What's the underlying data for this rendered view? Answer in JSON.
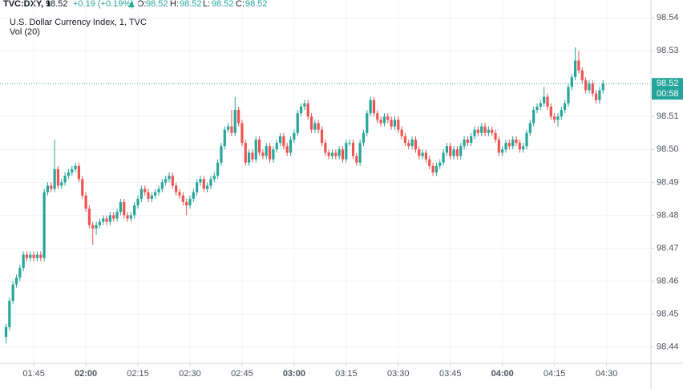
{
  "chart_data": {
    "type": "candlestick",
    "header": {
      "symbol": "TVC:DXY, 1",
      "last": "98.52",
      "change": "+0.19 (+0.19%)",
      "open_label": "O:",
      "open": "98.52",
      "high_label": "H:",
      "high": "98.52",
      "low_label": "L:",
      "low": "98.52",
      "close_label": "C:",
      "close": "98.52"
    },
    "title": "U.S. Dollar Currency Index, 1, TVC",
    "subtitle": "Vol (20)",
    "up_color": "#26a69a",
    "down_color": "#ef5350",
    "ylim": [
      98.435,
      98.542
    ],
    "yticks": [
      98.44,
      98.45,
      98.46,
      98.47,
      98.48,
      98.49,
      {
        "value": 98.5,
        "label": "98.50"
      },
      98.51,
      98.53,
      98.54
    ],
    "xticks": [
      "01:45",
      "02:00",
      "02:15",
      "02:30",
      "02:45",
      "03:00",
      "03:15",
      "03:30",
      "03:45",
      "04:00",
      "04:15",
      "04:30"
    ],
    "grid": true,
    "last_price": {
      "value": 98.52,
      "label": "98.52",
      "countdown": "00:58",
      "color": "#26a69a"
    },
    "x": [
      "01:37",
      "01:38",
      "01:39",
      "01:40",
      "01:41",
      "01:42",
      "01:43",
      "01:44",
      "01:45",
      "01:46",
      "01:47",
      "01:48",
      "01:49",
      "01:50",
      "01:51",
      "01:52",
      "01:53",
      "01:54",
      "01:55",
      "01:56",
      "01:57",
      "01:58",
      "01:59",
      "02:00",
      "02:01",
      "02:02",
      "02:03",
      "02:04",
      "02:05",
      "02:06",
      "02:07",
      "02:08",
      "02:09",
      "02:10",
      "02:11",
      "02:12",
      "02:13",
      "02:14",
      "02:15",
      "02:16",
      "02:17",
      "02:18",
      "02:19",
      "02:20",
      "02:21",
      "02:22",
      "02:23",
      "02:24",
      "02:25",
      "02:26",
      "02:27",
      "02:28",
      "02:29",
      "02:30",
      "02:31",
      "02:32",
      "02:33",
      "02:34",
      "02:35",
      "02:36",
      "02:37",
      "02:38",
      "02:39",
      "02:40",
      "02:41",
      "02:42",
      "02:43",
      "02:44",
      "02:45",
      "02:46",
      "02:47",
      "02:48",
      "02:49",
      "02:50",
      "02:51",
      "02:52",
      "02:53",
      "02:54",
      "02:55",
      "02:56",
      "02:57",
      "02:58",
      "02:59",
      "03:00",
      "03:01",
      "03:02",
      "03:03",
      "03:04",
      "03:05",
      "03:06",
      "03:07",
      "03:08",
      "03:09",
      "03:10",
      "03:11",
      "03:12",
      "03:13",
      "03:14",
      "03:15",
      "03:16",
      "03:17",
      "03:18",
      "03:19",
      "03:20",
      "03:21",
      "03:22",
      "03:23",
      "03:24",
      "03:25",
      "03:26",
      "03:27",
      "03:28",
      "03:29",
      "03:30",
      "03:31",
      "03:32",
      "03:33",
      "03:34",
      "03:35",
      "03:36",
      "03:37",
      "03:38",
      "03:39",
      "03:40",
      "03:41",
      "03:42",
      "03:43",
      "03:44",
      "03:45",
      "03:46",
      "03:47",
      "03:48",
      "03:49",
      "03:50",
      "03:51",
      "03:52",
      "03:53",
      "03:54",
      "03:55",
      "03:56",
      "03:57",
      "03:58",
      "03:59",
      "04:00",
      "04:01",
      "04:02",
      "04:03",
      "04:04",
      "04:05",
      "04:06",
      "04:07",
      "04:08",
      "04:09",
      "04:10",
      "04:11",
      "04:12",
      "04:13",
      "04:14",
      "04:15",
      "04:16",
      "04:17",
      "04:18",
      "04:19",
      "04:20",
      "04:21",
      "04:22",
      "04:23",
      "04:24",
      "04:25",
      "04:26",
      "04:27",
      "04:28",
      "04:29"
    ],
    "ohlc": [
      [
        98.443,
        98.447,
        98.441,
        98.446
      ],
      [
        98.446,
        98.455,
        98.445,
        98.454
      ],
      [
        98.454,
        98.46,
        98.453,
        98.459
      ],
      [
        98.459,
        98.462,
        98.458,
        98.461
      ],
      [
        98.461,
        98.465,
        98.46,
        98.464
      ],
      [
        98.464,
        98.469,
        98.463,
        98.468
      ],
      [
        98.468,
        98.469,
        98.466,
        98.467
      ],
      [
        98.467,
        98.469,
        98.466,
        98.468
      ],
      [
        98.468,
        98.469,
        98.466,
        98.467
      ],
      [
        98.467,
        98.469,
        98.466,
        98.468
      ],
      [
        98.468,
        98.469,
        98.466,
        98.467
      ],
      [
        98.467,
        98.488,
        98.466,
        98.487
      ],
      [
        98.487,
        98.49,
        98.486,
        98.489
      ],
      [
        98.489,
        98.49,
        98.487,
        98.488
      ],
      [
        98.488,
        98.503,
        98.487,
        98.494
      ],
      [
        98.494,
        98.495,
        98.488,
        98.489
      ],
      [
        98.489,
        98.491,
        98.488,
        98.49
      ],
      [
        98.49,
        98.493,
        98.489,
        98.492
      ],
      [
        98.492,
        98.494,
        98.491,
        98.493
      ],
      [
        98.493,
        98.495,
        98.492,
        98.494
      ],
      [
        98.494,
        98.496,
        98.493,
        98.495
      ],
      [
        98.495,
        98.496,
        98.49,
        98.491
      ],
      [
        98.491,
        98.492,
        98.485,
        98.486
      ],
      [
        98.486,
        98.487,
        98.481,
        98.482
      ],
      [
        98.482,
        98.483,
        98.476,
        98.477
      ],
      [
        98.477,
        98.478,
        98.471,
        98.476
      ],
      [
        98.476,
        98.478,
        98.474,
        98.477
      ],
      [
        98.477,
        98.479,
        98.476,
        98.478
      ],
      [
        98.478,
        98.48,
        98.477,
        98.479
      ],
      [
        98.479,
        98.48,
        98.477,
        98.478
      ],
      [
        98.478,
        98.481,
        98.477,
        98.48
      ],
      [
        98.48,
        98.481,
        98.478,
        98.479
      ],
      [
        98.479,
        98.482,
        98.478,
        98.481
      ],
      [
        98.481,
        98.485,
        98.48,
        98.484
      ],
      [
        98.484,
        98.485,
        98.479,
        98.48
      ],
      [
        98.48,
        98.481,
        98.478,
        98.479
      ],
      [
        98.479,
        98.481,
        98.478,
        98.48
      ],
      [
        98.48,
        98.484,
        98.479,
        98.483
      ],
      [
        98.483,
        98.486,
        98.482,
        98.485
      ],
      [
        98.485,
        98.489,
        98.484,
        98.488
      ],
      [
        98.488,
        98.489,
        98.486,
        98.487
      ],
      [
        98.487,
        98.488,
        98.484,
        98.485
      ],
      [
        98.485,
        98.487,
        98.484,
        98.486
      ],
      [
        98.486,
        98.488,
        98.485,
        98.487
      ],
      [
        98.487,
        98.489,
        98.486,
        98.488
      ],
      [
        98.488,
        98.491,
        98.487,
        98.49
      ],
      [
        98.49,
        98.492,
        98.489,
        98.491
      ],
      [
        98.491,
        98.493,
        98.49,
        98.492
      ],
      [
        98.492,
        98.493,
        98.488,
        98.489
      ],
      [
        98.489,
        98.49,
        98.486,
        98.487
      ],
      [
        98.487,
        98.488,
        98.485,
        98.486
      ],
      [
        98.486,
        98.487,
        98.483,
        98.484
      ],
      [
        98.484,
        98.485,
        98.48,
        98.483
      ],
      [
        98.483,
        98.486,
        98.482,
        98.485
      ],
      [
        98.485,
        98.488,
        98.484,
        98.487
      ],
      [
        98.487,
        98.491,
        98.486,
        98.49
      ],
      [
        98.49,
        98.492,
        98.489,
        98.491
      ],
      [
        98.491,
        98.492,
        98.487,
        98.488
      ],
      [
        98.488,
        98.49,
        98.487,
        98.489
      ],
      [
        98.489,
        98.492,
        98.488,
        98.491
      ],
      [
        98.491,
        98.493,
        98.49,
        98.492
      ],
      [
        98.492,
        98.497,
        98.491,
        98.496
      ],
      [
        98.496,
        98.502,
        98.495,
        98.501
      ],
      [
        98.501,
        98.507,
        98.5,
        98.506
      ],
      [
        98.506,
        98.508,
        98.505,
        98.507
      ],
      [
        98.507,
        98.512,
        98.504,
        98.505
      ],
      [
        98.505,
        98.516,
        98.504,
        98.512
      ],
      [
        98.512,
        98.513,
        98.507,
        98.508
      ],
      [
        98.508,
        98.509,
        98.501,
        98.502
      ],
      [
        98.502,
        98.503,
        98.495,
        98.496
      ],
      [
        98.496,
        98.5,
        98.495,
        98.499
      ],
      [
        98.499,
        98.5,
        98.496,
        98.497
      ],
      [
        98.497,
        98.504,
        98.496,
        98.503
      ],
      [
        98.503,
        98.504,
        98.498,
        98.499
      ],
      [
        98.499,
        98.5,
        98.497,
        98.498
      ],
      [
        98.498,
        98.502,
        98.497,
        98.501
      ],
      [
        98.501,
        98.502,
        98.496,
        98.497
      ],
      [
        98.497,
        98.501,
        98.496,
        98.5
      ],
      [
        98.5,
        98.503,
        98.499,
        98.502
      ],
      [
        98.502,
        98.505,
        98.501,
        98.504
      ],
      [
        98.504,
        98.505,
        98.5,
        98.501
      ],
      [
        98.501,
        98.502,
        98.498,
        98.499
      ],
      [
        98.499,
        98.504,
        98.498,
        98.503
      ],
      [
        98.503,
        98.506,
        98.502,
        98.505
      ],
      [
        98.505,
        98.512,
        98.504,
        98.511
      ],
      [
        98.511,
        98.514,
        98.51,
        98.513
      ],
      [
        98.513,
        98.515,
        98.512,
        98.514
      ],
      [
        98.514,
        98.515,
        98.509,
        98.51
      ],
      [
        98.51,
        98.511,
        98.505,
        98.506
      ],
      [
        98.506,
        98.509,
        98.505,
        98.508
      ],
      [
        98.508,
        98.509,
        98.505,
        98.506
      ],
      [
        98.506,
        98.507,
        98.501,
        98.502
      ],
      [
        98.502,
        98.503,
        98.498,
        98.499
      ],
      [
        98.499,
        98.5,
        98.497,
        98.498
      ],
      [
        98.498,
        98.5,
        98.497,
        98.499
      ],
      [
        98.499,
        98.5,
        98.497,
        98.498
      ],
      [
        98.498,
        98.501,
        98.497,
        98.5
      ],
      [
        98.5,
        98.501,
        98.496,
        98.497
      ],
      [
        98.497,
        98.503,
        98.496,
        98.502
      ],
      [
        98.502,
        98.503,
        98.501,
        98.502
      ],
      [
        98.502,
        98.503,
        98.497,
        98.498
      ],
      [
        98.498,
        98.499,
        98.495,
        98.496
      ],
      [
        98.496,
        98.503,
        98.495,
        98.502
      ],
      [
        98.502,
        98.506,
        98.501,
        98.505
      ],
      [
        98.505,
        98.512,
        98.504,
        98.511
      ],
      [
        98.511,
        98.516,
        98.51,
        98.515
      ],
      [
        98.515,
        98.516,
        98.51,
        98.511
      ],
      [
        98.511,
        98.512,
        98.508,
        98.509
      ],
      [
        98.509,
        98.51,
        98.507,
        98.508
      ],
      [
        98.508,
        98.511,
        98.507,
        98.51
      ],
      [
        98.51,
        98.511,
        98.508,
        98.509
      ],
      [
        98.509,
        98.51,
        98.506,
        98.507
      ],
      [
        98.507,
        98.51,
        98.506,
        98.509
      ],
      [
        98.509,
        98.51,
        98.505,
        98.506
      ],
      [
        98.506,
        98.507,
        98.503,
        98.504
      ],
      [
        98.504,
        98.505,
        98.501,
        98.502
      ],
      [
        98.502,
        98.503,
        98.5,
        98.501
      ],
      [
        98.501,
        98.504,
        98.5,
        98.503
      ],
      [
        98.503,
        98.504,
        98.499,
        98.5
      ],
      [
        98.5,
        98.501,
        98.497,
        98.498
      ],
      [
        98.498,
        98.5,
        98.497,
        98.499
      ],
      [
        98.499,
        98.5,
        98.496,
        98.497
      ],
      [
        98.497,
        98.498,
        98.494,
        98.495
      ],
      [
        98.495,
        98.496,
        98.492,
        98.493
      ],
      [
        98.493,
        98.496,
        98.492,
        98.495
      ],
      [
        98.495,
        98.497,
        98.494,
        98.496
      ],
      [
        98.496,
        98.5,
        98.495,
        98.499
      ],
      [
        98.499,
        98.502,
        98.498,
        98.501
      ],
      [
        98.501,
        98.502,
        98.497,
        98.498
      ],
      [
        98.498,
        98.501,
        98.497,
        98.5
      ],
      [
        98.5,
        98.501,
        98.497,
        98.498
      ],
      [
        98.498,
        98.502,
        98.497,
        98.501
      ],
      [
        98.501,
        98.504,
        98.5,
        98.503
      ],
      [
        98.503,
        98.504,
        98.501,
        98.502
      ],
      [
        98.502,
        98.505,
        98.501,
        98.504
      ],
      [
        98.504,
        98.507,
        98.503,
        98.506
      ],
      [
        98.506,
        98.507,
        98.504,
        98.505
      ],
      [
        98.505,
        98.508,
        98.504,
        98.507
      ],
      [
        98.507,
        98.508,
        98.504,
        98.505
      ],
      [
        98.505,
        98.507,
        98.504,
        98.506
      ],
      [
        98.506,
        98.507,
        98.504,
        98.505
      ],
      [
        98.505,
        98.506,
        98.502,
        98.503
      ],
      [
        98.503,
        98.504,
        98.498,
        98.499
      ],
      [
        98.499,
        98.501,
        98.498,
        98.5
      ],
      [
        98.5,
        98.503,
        98.499,
        98.502
      ],
      [
        98.502,
        98.503,
        98.5,
        98.501
      ],
      [
        98.501,
        98.504,
        98.5,
        98.503
      ],
      [
        98.503,
        98.504,
        98.501,
        98.502
      ],
      [
        98.502,
        98.503,
        98.499,
        98.5
      ],
      [
        98.5,
        98.502,
        98.499,
        98.501
      ],
      [
        98.501,
        98.506,
        98.5,
        98.505
      ],
      [
        98.505,
        98.509,
        98.504,
        98.508
      ],
      [
        98.508,
        98.513,
        98.507,
        98.512
      ],
      [
        98.512,
        98.514,
        98.511,
        98.513
      ],
      [
        98.513,
        98.515,
        98.512,
        98.514
      ],
      [
        98.514,
        98.519,
        98.513,
        98.516
      ],
      [
        98.516,
        98.517,
        98.512,
        98.513
      ],
      [
        98.513,
        98.514,
        98.509,
        98.51
      ],
      [
        98.51,
        98.511,
        98.508,
        98.509
      ],
      [
        98.509,
        98.511,
        98.507,
        98.51
      ],
      [
        98.51,
        98.513,
        98.509,
        98.512
      ],
      [
        98.512,
        98.515,
        98.511,
        98.514
      ],
      [
        98.514,
        98.52,
        98.513,
        98.519
      ],
      [
        98.519,
        98.523,
        98.518,
        98.522
      ],
      [
        98.522,
        98.531,
        98.521,
        98.527
      ],
      [
        98.527,
        98.53,
        98.523,
        98.524
      ],
      [
        98.524,
        98.525,
        98.52,
        98.521
      ],
      [
        98.521,
        98.522,
        98.517,
        98.518
      ],
      [
        98.518,
        98.521,
        98.517,
        98.52
      ],
      [
        98.52,
        98.521,
        98.516,
        98.517
      ],
      [
        98.517,
        98.518,
        98.514,
        98.515
      ],
      [
        98.515,
        98.519,
        98.514,
        98.518
      ],
      [
        98.518,
        98.521,
        98.517,
        98.52
      ]
    ]
  }
}
